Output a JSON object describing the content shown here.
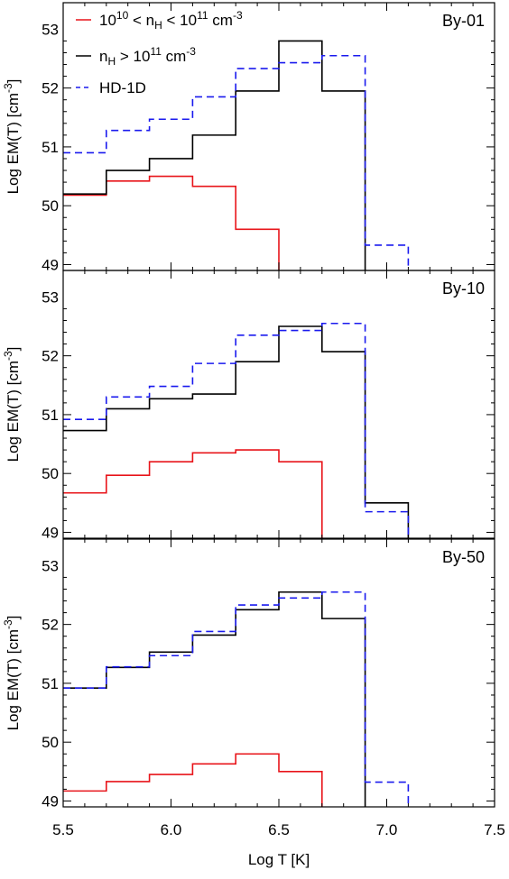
{
  "chart_data": {
    "type": "line",
    "step": true,
    "xlabel": "Log T [K]",
    "ylabel": "Log EM(T) [cm⁻³]",
    "xlim": [
      5.5,
      7.5
    ],
    "ylim": [
      48.9,
      53.45
    ],
    "xticks": [
      "5.5",
      "6.0",
      "6.5",
      "7.0",
      "7.5"
    ],
    "yticks": [
      "49",
      "50",
      "51",
      "52",
      "53"
    ],
    "colors": {
      "red": "#e8141a",
      "black": "#000000",
      "blue": "#1a1aee"
    },
    "legend": {
      "placement": "top-left",
      "entries": [
        {
          "series": "red",
          "text": "10¹⁰ < nH < 10¹¹ cm⁻³",
          "style": "solid"
        },
        {
          "series": "black",
          "text": "nH > 10¹¹ cm⁻³",
          "style": "solid"
        },
        {
          "series": "blue",
          "text": "HD-1D",
          "style": "dashed"
        }
      ]
    },
    "panels": [
      {
        "label": "By-01",
        "series": [
          {
            "name": "10¹⁰ < nH < 10¹¹ cm⁻³",
            "color": "red",
            "dashed": false,
            "edges": [
              5.5,
              5.7,
              5.9,
              6.1,
              6.3,
              6.5
            ],
            "values": [
              50.18,
              50.42,
              50.5,
              50.33,
              49.6
            ]
          },
          {
            "name": "nH > 10¹¹ cm⁻³",
            "color": "black",
            "dashed": false,
            "edges": [
              5.5,
              5.7,
              5.9,
              6.1,
              6.3,
              6.5,
              6.7,
              6.9
            ],
            "values": [
              50.2,
              50.6,
              50.8,
              51.2,
              51.95,
              52.8,
              51.95
            ]
          },
          {
            "name": "HD-1D",
            "color": "blue",
            "dashed": true,
            "edges": [
              5.5,
              5.7,
              5.9,
              6.1,
              6.3,
              6.5,
              6.7,
              6.9,
              7.1
            ],
            "values": [
              50.9,
              51.28,
              51.47,
              51.85,
              52.33,
              52.43,
              52.55,
              49.33
            ]
          }
        ]
      },
      {
        "label": "By-10",
        "series": [
          {
            "name": "10¹⁰ < nH < 10¹¹ cm⁻³",
            "color": "red",
            "dashed": false,
            "edges": [
              5.5,
              5.7,
              5.9,
              6.1,
              6.3,
              6.5,
              6.7
            ],
            "values": [
              49.67,
              49.97,
              50.2,
              50.35,
              50.4,
              50.2
            ]
          },
          {
            "name": "nH > 10¹¹ cm⁻³",
            "color": "black",
            "dashed": false,
            "edges": [
              5.5,
              5.7,
              5.9,
              6.1,
              6.3,
              6.5,
              6.7,
              6.9,
              7.1
            ],
            "values": [
              50.73,
              51.1,
              51.27,
              51.35,
              51.9,
              52.5,
              52.07,
              49.5
            ]
          },
          {
            "name": "HD-1D",
            "color": "blue",
            "dashed": true,
            "edges": [
              5.5,
              5.7,
              5.9,
              6.1,
              6.3,
              6.5,
              6.7,
              6.9,
              7.1
            ],
            "values": [
              50.92,
              51.3,
              51.48,
              51.87,
              52.35,
              52.43,
              52.55,
              49.35
            ]
          }
        ]
      },
      {
        "label": "By-50",
        "series": [
          {
            "name": "10¹⁰ < nH < 10¹¹ cm⁻³",
            "color": "red",
            "dashed": false,
            "edges": [
              5.5,
              5.7,
              5.9,
              6.1,
              6.3,
              6.5,
              6.7
            ],
            "values": [
              49.17,
              49.33,
              49.45,
              49.63,
              49.8,
              49.5
            ]
          },
          {
            "name": "nH > 10¹¹ cm⁻³",
            "color": "black",
            "dashed": false,
            "edges": [
              5.5,
              5.7,
              5.9,
              6.1,
              6.3,
              6.5,
              6.7,
              6.9
            ],
            "values": [
              50.92,
              51.27,
              51.53,
              51.82,
              52.25,
              52.55,
              52.1
            ]
          },
          {
            "name": "HD-1D",
            "color": "blue",
            "dashed": true,
            "edges": [
              5.5,
              5.7,
              5.9,
              6.1,
              6.3,
              6.5,
              6.7,
              6.9,
              7.1
            ],
            "values": [
              50.92,
              51.28,
              51.47,
              51.88,
              52.33,
              52.45,
              52.55,
              49.32
            ]
          }
        ]
      }
    ]
  }
}
